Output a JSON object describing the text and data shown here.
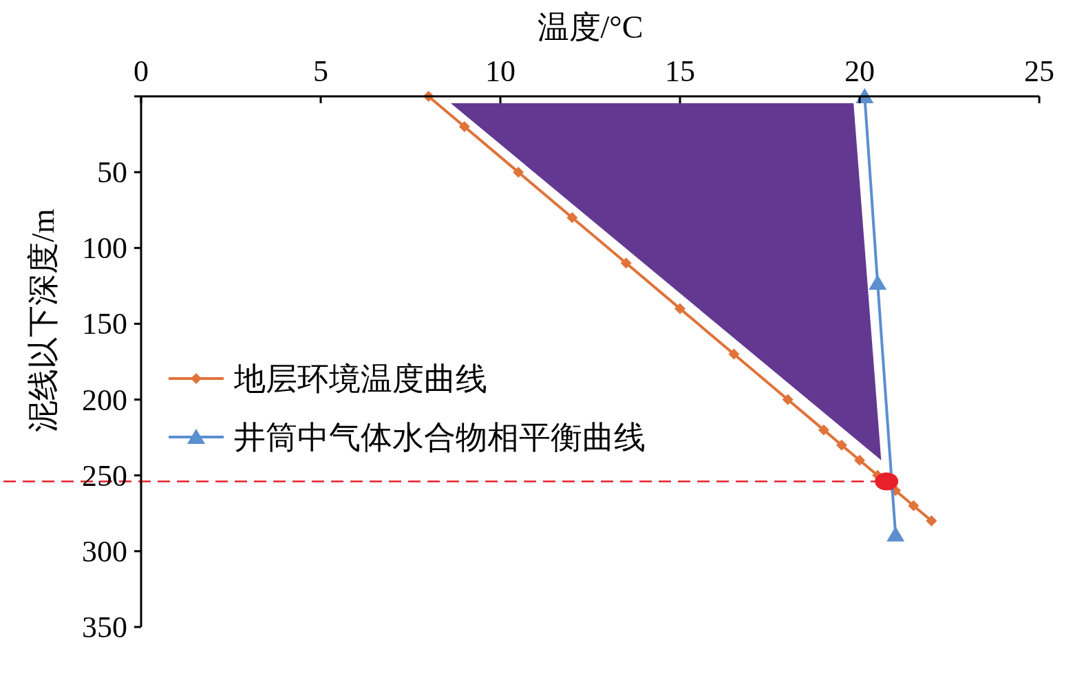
{
  "chart_data": {
    "type": "line",
    "xlabel": "温度/°C",
    "ylabel": "泥线以下深度/m",
    "xlim": [
      0,
      25
    ],
    "xticks": [
      0,
      5,
      10,
      15,
      20,
      25
    ],
    "ylim": [
      350,
      0
    ],
    "yticks": [
      {
        "value": 0,
        "label": null
      },
      50,
      100,
      150,
      200,
      250,
      300,
      350
    ],
    "grid": false,
    "legend": "left",
    "series": [
      {
        "type": "area",
        "color": "#633891",
        "x": [
          8.62,
          19.83,
          20.6
        ],
        "values": [
          4.5,
          4.5,
          240
        ]
      },
      {
        "name": "地层环境温度曲线",
        "color": "#e0733a",
        "marker": "diamond",
        "x": [
          8,
          9,
          10.5,
          12,
          13.5,
          15,
          16.5,
          18,
          19,
          19.5,
          20,
          20.5,
          21,
          21.5,
          22
        ],
        "values": [
          0,
          20,
          50,
          80,
          110,
          140,
          170,
          200,
          220,
          230,
          240,
          250,
          260,
          270,
          280
        ]
      },
      {
        "name": "井筒中气体水合物相平衡曲线",
        "color": "#5b8fd0",
        "marker": "triangle",
        "x": [
          20.14,
          20.5,
          21
        ],
        "values": [
          0,
          123,
          289
        ]
      },
      {
        "type": "scatter",
        "color": "#e8202a",
        "marker": "circle",
        "x": [
          20.75
        ],
        "values": [
          254
        ]
      }
    ],
    "ref_lines": [
      {
        "axis": "y",
        "value": 254,
        "color": "#e8202a",
        "line_style": "dashed"
      }
    ]
  }
}
